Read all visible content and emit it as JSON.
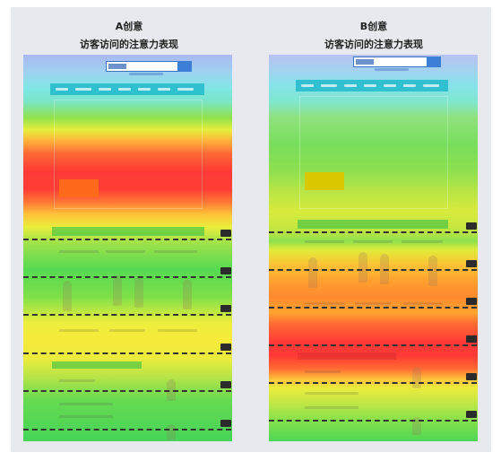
{
  "panels": {
    "a": {
      "title": "A创意",
      "subtitle": "访客访问的注意力表现",
      "cta_color": "#ff6a1a"
    },
    "b": {
      "title": "B创意",
      "subtitle": "访客访问的注意力表现",
      "cta_color": "#d9c800"
    }
  },
  "heat_colors": {
    "blue": "#9bb8f0",
    "cyan": "#7fe6e6",
    "green": "#3fdc5a",
    "yellow": "#f2ea3a",
    "orange": "#ff9a2e",
    "red": "#ff3a36"
  }
}
